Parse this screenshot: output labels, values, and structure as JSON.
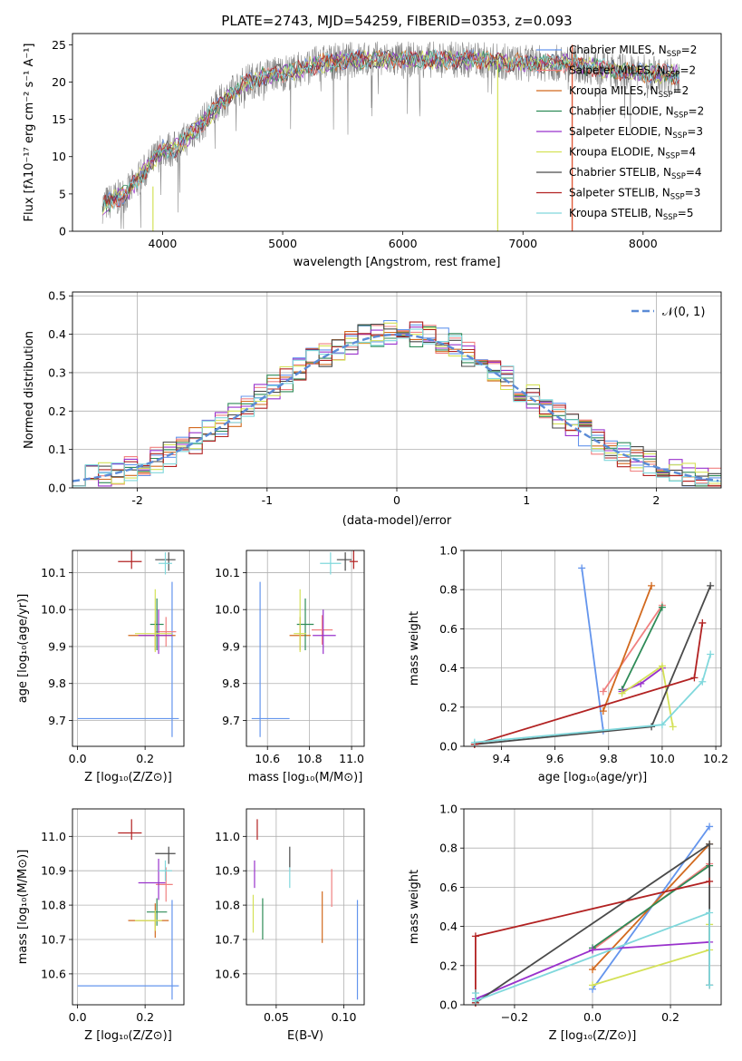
{
  "colors": [
    "#6495ed",
    "#f08080",
    "#d2691e",
    "#2e8b57",
    "#9932cc",
    "#d4e157",
    "#4a4a4a",
    "#b22222",
    "#80d8dc"
  ],
  "chart_data": [
    {
      "id": "spectrum",
      "type": "line",
      "title": "PLATE=2743, MJD=54259, FIBERID=0353, z=0.093",
      "xlabel": "wavelength [Angstrom, rest frame]",
      "ylabel": "Flux [fλ10⁻¹⁷ erg cm⁻² s⁻¹ A⁻¹]",
      "xlim": [
        3250,
        8650
      ],
      "ylim": [
        0,
        26.5
      ],
      "xticks": [
        4000,
        5000,
        6000,
        7000,
        8000
      ],
      "yticks": [
        0,
        5,
        10,
        15,
        20,
        25
      ],
      "grid": false,
      "legend_position": "top-right",
      "continuum_knots": [
        [
          3500,
          3.5
        ],
        [
          3700,
          5
        ],
        [
          3900,
          9
        ],
        [
          4000,
          11
        ],
        [
          4100,
          11
        ],
        [
          4300,
          14
        ],
        [
          4500,
          17.5
        ],
        [
          4700,
          20
        ],
        [
          4900,
          21
        ],
        [
          5100,
          21.5
        ],
        [
          5300,
          22.5
        ],
        [
          5600,
          23
        ],
        [
          5900,
          23
        ],
        [
          6200,
          23
        ],
        [
          6600,
          23
        ],
        [
          7000,
          22.5
        ],
        [
          7400,
          22.5
        ],
        [
          7800,
          21.5
        ],
        [
          8200,
          21
        ],
        [
          8300,
          21
        ]
      ],
      "legend": [
        {
          "text": "Chabrier MILES, N",
          "sub": "SSP",
          "tail": "=2"
        },
        {
          "text": "Salpeter MILES, N",
          "sub": "SSP",
          "tail": "=2"
        },
        {
          "text": "Kroupa MILES, N",
          "sub": "SSP",
          "tail": "=2"
        },
        {
          "text": "Chabrier ELODIE, N",
          "sub": "SSP",
          "tail": "=2"
        },
        {
          "text": "Salpeter ELODIE, N",
          "sub": "SSP",
          "tail": "=3"
        },
        {
          "text": "Kroupa ELODIE, N",
          "sub": "SSP",
          "tail": "=4"
        },
        {
          "text": "Chabrier STELIB, N",
          "sub": "SSP",
          "tail": "=4"
        },
        {
          "text": "Salpeter STELIB, N",
          "sub": "SSP",
          "tail": "=3"
        },
        {
          "text": "Kroupa STELIB, N",
          "sub": "SSP",
          "tail": "=5"
        }
      ]
    },
    {
      "id": "residuals",
      "type": "histogram",
      "xlabel": "(data-model)/error",
      "ylabel": "Normed distribution",
      "xlim": [
        -2.5,
        2.5
      ],
      "ylim": [
        0,
        0.51
      ],
      "xticks": [
        -2,
        -1,
        0,
        1,
        2
      ],
      "yticks": [
        0.0,
        0.1,
        0.2,
        0.3,
        0.4,
        0.5
      ],
      "grid": true,
      "legend": "𝒩(0, 1)",
      "legend_position": "top-right",
      "bin_width": 0.1
    },
    {
      "id": "age-vs-Z",
      "type": "scatter",
      "xlabel": "Z [log₁₀(Z/Z⊙)]",
      "ylabel": "age  [log₁₀(age/yr)]",
      "xlim": [
        -0.015,
        0.315
      ],
      "ylim": [
        9.63,
        10.16
      ],
      "xticks": [
        0.0,
        0.2
      ],
      "yticks": [
        9.7,
        9.8,
        9.9,
        10.0,
        10.1
      ],
      "points": [
        {
          "x": 0.28,
          "xerr": [
            0.28,
            0.02
          ],
          "y": 9.705,
          "yerr": [
            0.05,
            0.37
          ]
        },
        {
          "x": 0.262,
          "xerr": [
            0.03,
            0.03
          ],
          "y": 9.94,
          "yerr": [
            0.04,
            0.04
          ]
        },
        {
          "x": 0.23,
          "xerr": [
            0.08,
            0.06
          ],
          "y": 9.93,
          "yerr": [
            0.04,
            0.04
          ]
        },
        {
          "x": 0.235,
          "xerr": [
            0.02,
            0.02
          ],
          "y": 9.96,
          "yerr": [
            0.07,
            0.07
          ]
        },
        {
          "x": 0.24,
          "xerr": [
            0.06,
            0.04
          ],
          "y": 9.93,
          "yerr": [
            0.05,
            0.07
          ]
        },
        {
          "x": 0.23,
          "xerr": [
            0.06,
            0.05
          ],
          "y": 9.935,
          "yerr": [
            0.05,
            0.12
          ]
        },
        {
          "x": 0.27,
          "xerr": [
            0.04,
            0.02
          ],
          "y": 10.135,
          "yerr": [
            0.03,
            0.02
          ]
        },
        {
          "x": 0.16,
          "xerr": [
            0.04,
            0.03
          ],
          "y": 10.13,
          "yerr": [
            0.02,
            0.03
          ]
        },
        {
          "x": 0.26,
          "xerr": [
            0.02,
            0.02
          ],
          "y": 10.125,
          "yerr": [
            0.03,
            0.03
          ]
        }
      ]
    },
    {
      "id": "age-vs-mass",
      "type": "scatter",
      "xlabel": "mass [log₁₀(M/M⊙)]",
      "ylabel": "",
      "xlim": [
        10.5,
        11.06
      ],
      "ylim": [
        9.63,
        10.16
      ],
      "xticks": [
        10.6,
        10.8,
        11.0
      ],
      "yticks": [
        9.7,
        9.8,
        9.9,
        10.0,
        10.1
      ],
      "points": [
        {
          "x": 10.565,
          "xerr": [
            0.04,
            0.14
          ],
          "y": 9.705,
          "yerr": [
            0.05,
            0.37
          ]
        },
        {
          "x": 10.86,
          "xerr": [
            0.05,
            0.05
          ],
          "y": 9.945,
          "yerr": [
            0.04,
            0.04
          ]
        },
        {
          "x": 10.755,
          "xerr": [
            0.05,
            0.05
          ],
          "y": 9.93,
          "yerr": [
            0.04,
            0.05
          ]
        },
        {
          "x": 10.78,
          "xerr": [
            0.04,
            0.04
          ],
          "y": 9.96,
          "yerr": [
            0.07,
            0.07
          ]
        },
        {
          "x": 10.865,
          "xerr": [
            0.05,
            0.06
          ],
          "y": 9.93,
          "yerr": [
            0.05,
            0.07
          ]
        },
        {
          "x": 10.755,
          "xerr": [
            0.03,
            0.03
          ],
          "y": 9.935,
          "yerr": [
            0.05,
            0.12
          ]
        },
        {
          "x": 10.97,
          "xerr": [
            0.04,
            0.03
          ],
          "y": 10.135,
          "yerr": [
            0.03,
            0.02
          ]
        },
        {
          "x": 11.01,
          "xerr": [
            0.02,
            0.02
          ],
          "y": 10.13,
          "yerr": [
            0.02,
            0.03
          ]
        },
        {
          "x": 10.9,
          "xerr": [
            0.05,
            0.05
          ],
          "y": 10.125,
          "yerr": [
            0.03,
            0.03
          ]
        }
      ]
    },
    {
      "id": "weight-vs-age",
      "type": "line",
      "xlabel": "age  [log₁₀(age/yr)]",
      "ylabel": "mass weight",
      "xlim": [
        9.26,
        10.22
      ],
      "ylim": [
        0,
        1.0
      ],
      "xticks": [
        9.4,
        9.6,
        9.8,
        10.0,
        10.2
      ],
      "yticks": [
        0.0,
        0.2,
        0.4,
        0.6,
        0.8,
        1.0
      ],
      "series": [
        {
          "x": [
            9.7,
            9.78
          ],
          "y": [
            0.91,
            0.08
          ]
        },
        {
          "x": [
            9.78,
            10.0
          ],
          "y": [
            0.28,
            0.72
          ]
        },
        {
          "x": [
            9.78,
            9.96
          ],
          "y": [
            0.18,
            0.82
          ]
        },
        {
          "x": [
            9.85,
            10.0
          ],
          "y": [
            0.29,
            0.71
          ]
        },
        {
          "x": [
            9.85,
            9.92,
            10.0
          ],
          "y": [
            0.28,
            0.32,
            0.4
          ]
        },
        {
          "x": [
            9.85,
            10.0,
            10.04
          ],
          "y": [
            0.27,
            0.41,
            0.1
          ]
        },
        {
          "x": [
            9.3,
            9.96,
            10.18
          ],
          "y": [
            0.01,
            0.1,
            0.82
          ]
        },
        {
          "x": [
            9.3,
            10.12,
            10.15
          ],
          "y": [
            0.01,
            0.35,
            0.63
          ]
        },
        {
          "x": [
            9.3,
            10.0,
            10.15,
            10.18
          ],
          "y": [
            0.02,
            0.11,
            0.33,
            0.47
          ]
        }
      ]
    },
    {
      "id": "mass-vs-Z",
      "type": "scatter",
      "xlabel": "Z [log₁₀(Z/Z⊙)]",
      "ylabel": "mass [log₁₀(M/M⊙)]",
      "xlim": [
        -0.015,
        0.315
      ],
      "ylim": [
        10.51,
        11.08
      ],
      "xticks": [
        0.0,
        0.2
      ],
      "yticks": [
        10.6,
        10.7,
        10.8,
        10.9,
        11.0
      ],
      "points": [
        {
          "x": 0.28,
          "xerr": [
            0.28,
            0.02
          ],
          "y": 10.565,
          "yerr": [
            0.04,
            0.25
          ]
        },
        {
          "x": 0.262,
          "xerr": [
            0.03,
            0.02
          ],
          "y": 10.86,
          "yerr": [
            0.05,
            0.05
          ]
        },
        {
          "x": 0.23,
          "xerr": [
            0.08,
            0.04
          ],
          "y": 10.755,
          "yerr": [
            0.05,
            0.05
          ]
        },
        {
          "x": 0.235,
          "xerr": [
            0.03,
            0.03
          ],
          "y": 10.78,
          "yerr": [
            0.04,
            0.04
          ]
        },
        {
          "x": 0.24,
          "xerr": [
            0.06,
            0.02
          ],
          "y": 10.865,
          "yerr": [
            0.05,
            0.07
          ]
        },
        {
          "x": 0.23,
          "xerr": [
            0.06,
            0.02
          ],
          "y": 10.755,
          "yerr": [
            0.03,
            0.03
          ]
        },
        {
          "x": 0.27,
          "xerr": [
            0.04,
            0.02
          ],
          "y": 10.95,
          "yerr": [
            0.03,
            0.02
          ]
        },
        {
          "x": 0.16,
          "xerr": [
            0.04,
            0.03
          ],
          "y": 11.01,
          "yerr": [
            0.02,
            0.04
          ]
        },
        {
          "x": 0.26,
          "xerr": [
            0.02,
            0.02
          ],
          "y": 10.9,
          "yerr": [
            0.03,
            0.03
          ]
        }
      ]
    },
    {
      "id": "mass-vs-EBV",
      "type": "scatter",
      "xlabel": "E(B-V)",
      "ylabel": "",
      "xlim": [
        0.028,
        0.115
      ],
      "ylim": [
        10.51,
        11.08
      ],
      "xticks": [
        0.05,
        0.1
      ],
      "yticks": [
        10.6,
        10.7,
        10.8,
        10.9,
        11.0
      ],
      "points": [
        {
          "x": 0.11,
          "y": 10.565,
          "yerr": [
            0.04,
            0.25
          ]
        },
        {
          "x": 0.091,
          "y": 10.855,
          "yerr": [
            0.06,
            0.05
          ]
        },
        {
          "x": 0.084,
          "y": 10.77,
          "yerr": [
            0.08,
            0.07
          ]
        },
        {
          "x": 0.04,
          "y": 10.76,
          "yerr": [
            0.06,
            0.06
          ]
        },
        {
          "x": 0.034,
          "y": 10.89,
          "yerr": [
            0.04,
            0.04
          ]
        },
        {
          "x": 0.033,
          "y": 10.75,
          "yerr": [
            0.03,
            0.08
          ]
        },
        {
          "x": 0.06,
          "y": 10.94,
          "yerr": [
            0.03,
            0.03
          ]
        },
        {
          "x": 0.036,
          "y": 11.01,
          "yerr": [
            0.02,
            0.04
          ]
        },
        {
          "x": 0.06,
          "y": 10.88,
          "yerr": [
            0.03,
            0.03
          ]
        }
      ]
    },
    {
      "id": "weight-vs-Z",
      "type": "line",
      "xlabel": "Z [log₁₀(Z/Z⊙)]",
      "ylabel": "mass weight",
      "xlim": [
        -0.33,
        0.33
      ],
      "ylim": [
        0,
        1.0
      ],
      "xticks": [
        -0.2,
        0.0,
        0.2
      ],
      "yticks": [
        0.0,
        0.2,
        0.4,
        0.6,
        0.8,
        1.0
      ],
      "series": [
        {
          "x": [
            0.0,
            0.3
          ],
          "y": [
            0.08,
            0.91
          ]
        },
        {
          "x": [
            0.0,
            0.3
          ],
          "y": [
            0.28,
            0.72
          ]
        },
        {
          "x": [
            0.0,
            0.3
          ],
          "y": [
            0.18,
            0.82
          ]
        },
        {
          "x": [
            0.0,
            0.3
          ],
          "y": [
            0.29,
            0.71
          ]
        },
        {
          "x": [
            -0.3,
            0.0,
            0.3
          ],
          "y": [
            0.03,
            0.28,
            0.32
          ]
        },
        {
          "x": [
            0.0,
            0.3,
            0.3
          ],
          "y": [
            0.1,
            0.28,
            0.41
          ]
        },
        {
          "x": [
            -0.3,
            0.3,
            0.3
          ],
          "y": [
            0.01,
            0.82,
            0.1
          ]
        },
        {
          "x": [
            -0.3,
            -0.3,
            0.3
          ],
          "y": [
            0.01,
            0.35,
            0.63
          ]
        },
        {
          "x": [
            -0.3,
            -0.3,
            0.3,
            0.3
          ],
          "y": [
            0.06,
            0.02,
            0.47,
            0.1
          ]
        }
      ]
    }
  ]
}
